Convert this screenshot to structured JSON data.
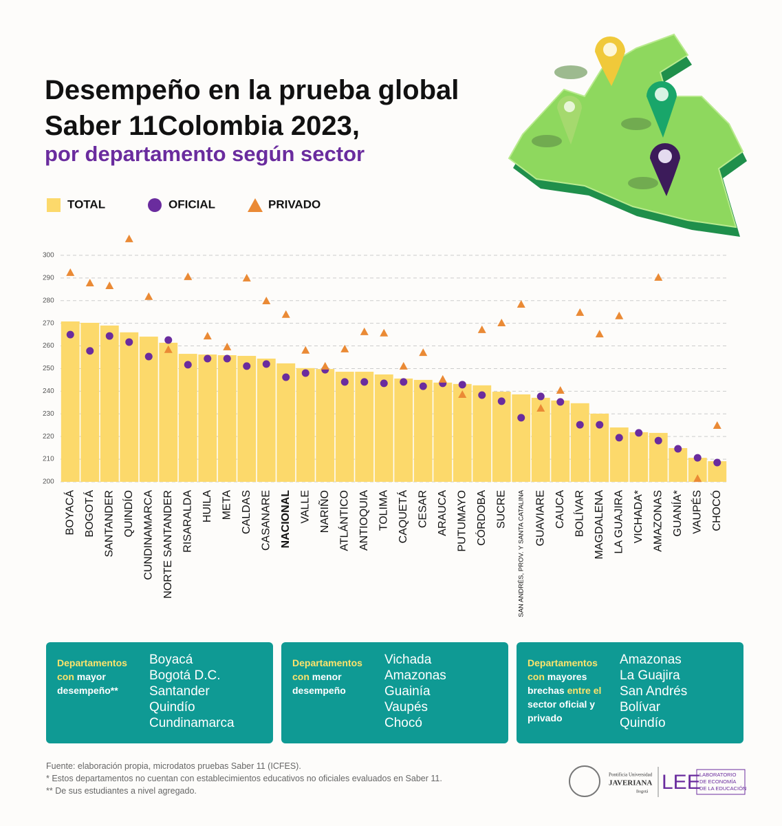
{
  "chart_data": {
    "type": "bar_markers",
    "title": "Desempeño en la prueba global Saber 11Colombia 2023,",
    "subtitle": "por departamento según sector",
    "categories": [
      "BOYACÁ",
      "BOGOTÁ",
      "SANTANDER",
      "QUINDÍO",
      "CUNDINAMARCA",
      "NORTE SANTANDER",
      "RISARALDA",
      "HUILA",
      "META",
      "CALDAS",
      "CASANARE",
      "NACIONAL",
      "VALLE",
      "NARIÑO",
      "ATLÁNTICO",
      "ANTIOQUIA",
      "TOLIMA",
      "CAQUETÁ",
      "CESAR",
      "ARAUCA",
      "PUTUMAYO",
      "CÓRDOBA",
      "SUCRE",
      "SAN ANDRÉS, PROV. Y SANTA CATALINA",
      "GUAVIARE",
      "CAUCA",
      "BOLÍVAR",
      "MAGDALENA",
      "LA GUAJIRA",
      "VICHADA*",
      "AMAZONAS",
      "GUANÍA*",
      "VAUPÉS",
      "CHOCÓ"
    ],
    "bold_category_index": 11,
    "series": [
      {
        "name": "TOTAL",
        "marker": "bar",
        "color": "#fcd96b",
        "values": [
          270.8,
          270.2,
          269.0,
          266.0,
          264.1,
          261.4,
          256.5,
          256.2,
          255.9,
          255.6,
          254.4,
          252.3,
          250.2,
          249.8,
          248.6,
          248.6,
          247.4,
          245.6,
          245.0,
          243.8,
          243.2,
          242.6,
          239.8,
          238.6,
          237.1,
          235.9,
          234.7,
          230.1,
          224.0,
          221.9,
          221.6,
          214.9,
          210.6,
          209.1
        ]
      },
      {
        "name": "OFICIAL",
        "marker": "circle",
        "color": "#6a2c9e",
        "values": [
          265.0,
          257.8,
          264.4,
          261.7,
          255.3,
          262.6,
          251.7,
          254.4,
          254.4,
          251.1,
          252.0,
          246.2,
          248.0,
          249.5,
          244.1,
          244.1,
          243.5,
          244.1,
          242.2,
          243.5,
          242.9,
          238.3,
          235.6,
          228.3,
          237.7,
          235.3,
          225.2,
          225.2,
          219.5,
          221.6,
          218.2,
          214.6,
          210.6,
          208.5
        ]
      },
      {
        "name": "PRIVADO",
        "marker": "triangle",
        "color": "#ea8a35",
        "values": [
          292.4,
          287.8,
          286.6,
          307.3,
          281.8,
          258.4,
          290.6,
          264.4,
          259.6,
          290.0,
          279.9,
          273.9,
          258.1,
          251.1,
          258.7,
          266.3,
          265.7,
          251.1,
          257.1,
          245.3,
          238.6,
          267.2,
          270.2,
          278.4,
          232.5,
          240.4,
          274.8,
          265.3,
          273.3,
          null,
          290.3,
          null,
          201.5,
          224.9
        ]
      }
    ],
    "ylim": [
      200,
      310
    ],
    "yticks": [
      200,
      210,
      220,
      230,
      240,
      250,
      260,
      270,
      280,
      290,
      300
    ],
    "grid": true
  },
  "boxes": [
    {
      "heading": [
        "Departamentos con",
        "mayor desempeño**"
      ],
      "items": [
        "Boyacá",
        "Bogotá D.C.",
        "Santander",
        "Quindío",
        "Cundinamarca"
      ]
    },
    {
      "heading": [
        "Departamentos con",
        "menor desempeño"
      ],
      "items": [
        "Vichada",
        "Amazonas",
        "Guainía",
        "Vaupés",
        "Chocó"
      ]
    },
    {
      "heading": [
        "Departamentos con",
        "mayores brechas",
        "entre el",
        "sector oficial y privado"
      ],
      "items": [
        "Amazonas",
        "La Guajira",
        "San Andrés",
        "Bolívar",
        "Quindío"
      ]
    }
  ],
  "footer": [
    "Fuente: elaboración propia, microdatos pruebas Saber 11 (ICFES).",
    "* Estos departamentos no cuentan con establecimientos educativos no oficiales evaluados en Saber 11.",
    "** De sus estudiantes a nivel agregado."
  ],
  "logos": {
    "university": [
      "Pontificia Universidad",
      "JAVERIANA",
      "Bogotá"
    ],
    "lab": "LEE",
    "lab_name": [
      "LABORATORIO",
      "DE ECONOMÍA",
      "DE LA EDUCACIÓN"
    ]
  }
}
